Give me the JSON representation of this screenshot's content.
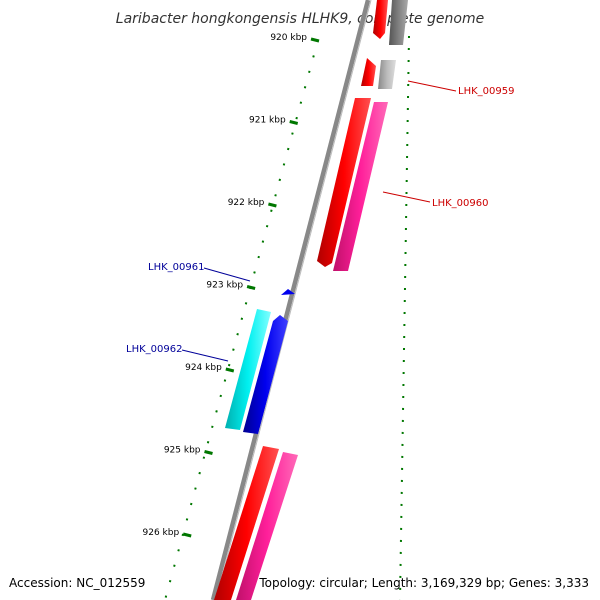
{
  "title": "Laribacter hongkongensis HLHK9, complete genome",
  "footer": {
    "accession": "Accession: NC_012559",
    "info": "Topology: circular; Length: 3,169,329 bp; Genes: 3,333"
  },
  "ticks": [
    "920 kbp",
    "921 kbp",
    "922 kbp",
    "923 kbp",
    "924 kbp",
    "925 kbp",
    "926 kbp"
  ],
  "gene_labels": [
    "LHK_00959",
    "LHK_00960",
    "LHK_00961",
    "LHK_00962"
  ],
  "colors": {
    "backbone": "#888888",
    "tick": "#007700",
    "cds_forward": "#ff0000",
    "cds_reverse": "#ff1493",
    "gene_blue": "#0000ee",
    "gene_cyan": "#00eeee",
    "gene_gray": "#777777",
    "label_red": "#cc0000",
    "label_blue": "#000099"
  }
}
